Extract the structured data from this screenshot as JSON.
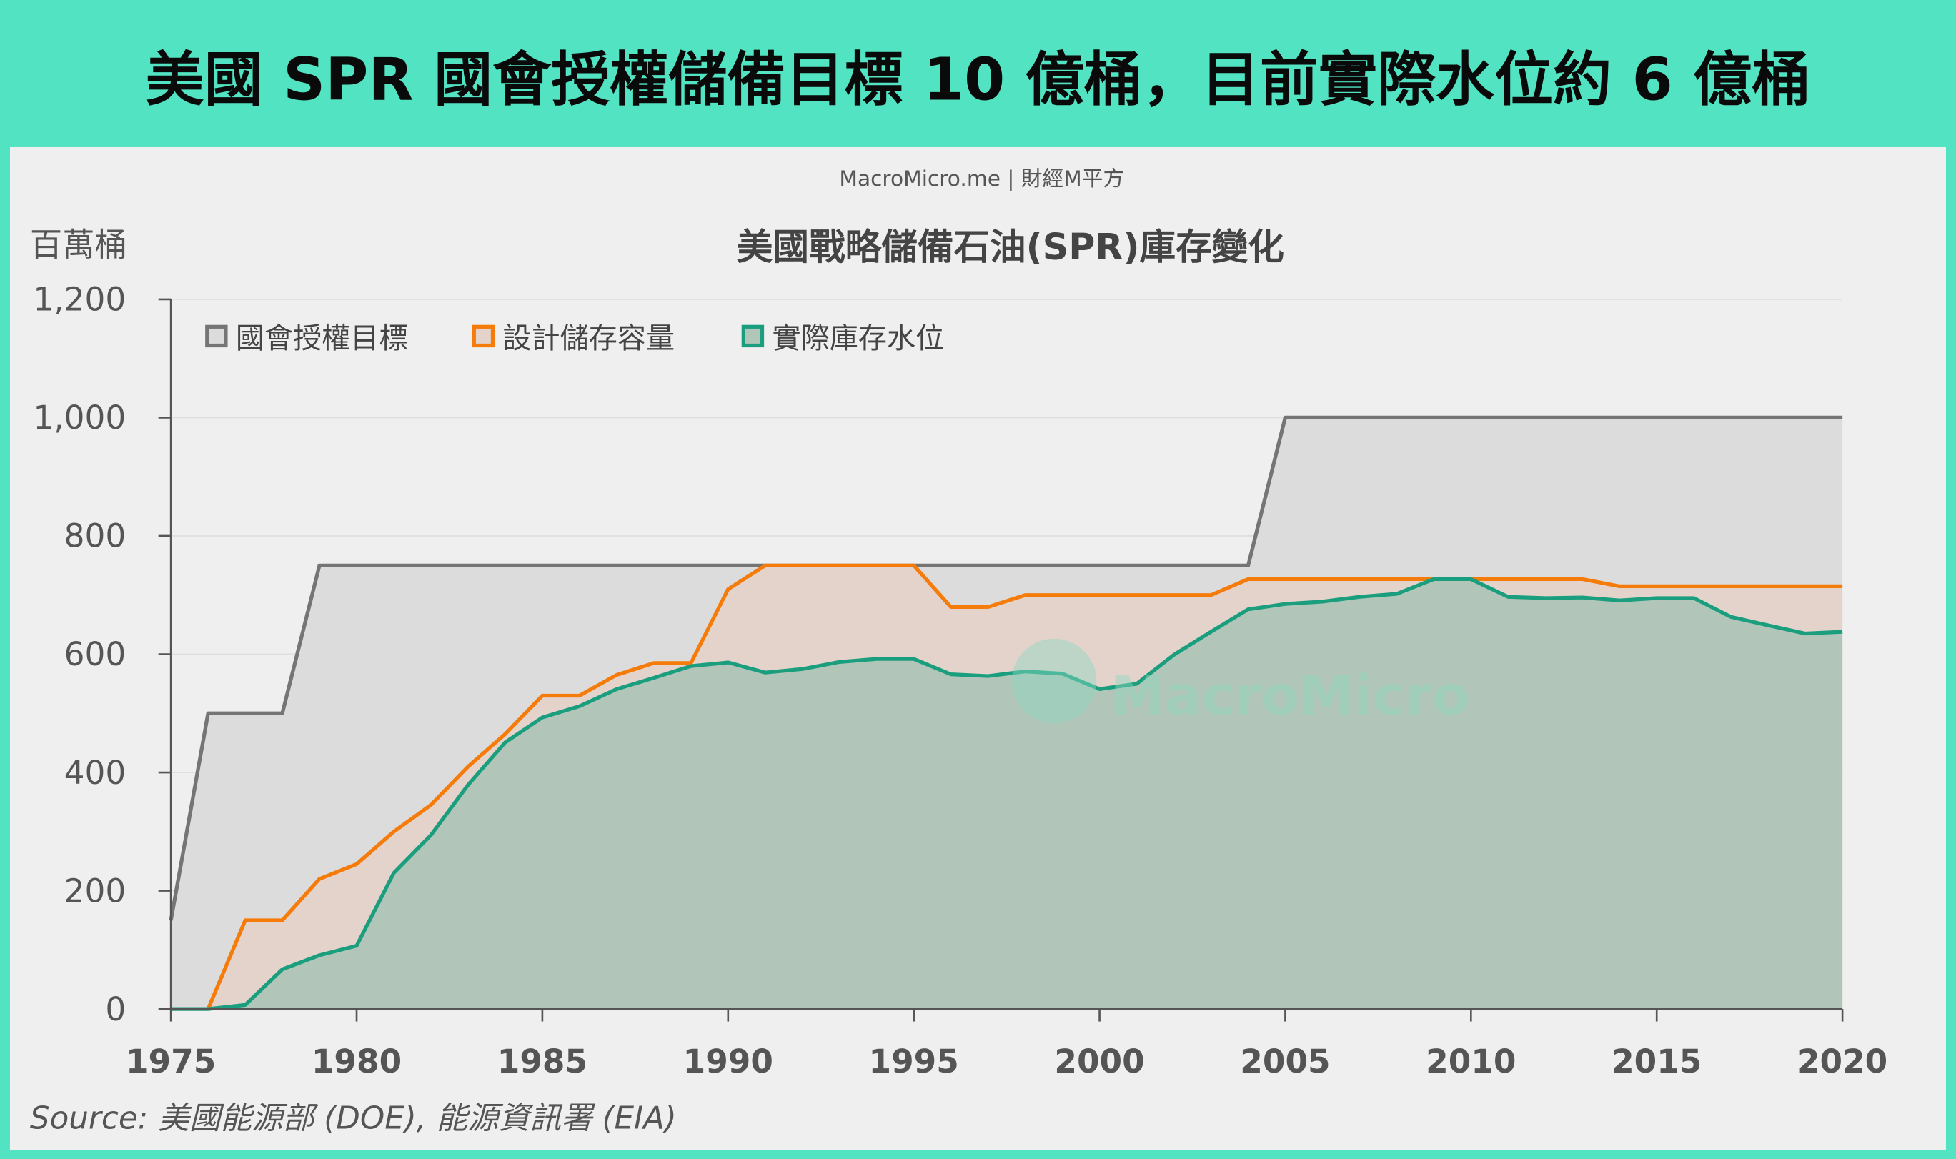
{
  "headline": "美國 SPR 國會授權儲備目標 10 億桶，目前實際水位約 6 億桶",
  "chart_data": {
    "type": "area",
    "watermark_credit": "MacroMicro.me | 財經M平方",
    "watermark_logo": "MacroMicro 財經M平方",
    "title": "美國戰略儲備石油(SPR)庫存變化",
    "ylabel": "百萬桶",
    "xlabel": "",
    "source": "Source: 美國能源部 (DOE), 能源資訊署 (EIA)",
    "xlim": [
      1975,
      2020
    ],
    "ylim": [
      0,
      1200
    ],
    "yticks": [
      "0",
      "200",
      "400",
      "600",
      "800",
      "1,000",
      "1,200"
    ],
    "ytick_values": [
      0,
      200,
      400,
      600,
      800,
      1000,
      1200
    ],
    "xticks": [
      "1975",
      "1980",
      "1985",
      "1990",
      "1995",
      "2000",
      "2005",
      "2010",
      "2015",
      "2020"
    ],
    "xtick_values": [
      1975,
      1980,
      1985,
      1990,
      1995,
      2000,
      2005,
      2010,
      2015,
      2020
    ],
    "grid": true,
    "legend_position": "top-left",
    "x": [
      1975,
      1976,
      1977,
      1978,
      1979,
      1980,
      1981,
      1982,
      1983,
      1984,
      1985,
      1986,
      1987,
      1988,
      1989,
      1990,
      1991,
      1992,
      1993,
      1994,
      1995,
      1996,
      1997,
      1998,
      1999,
      2000,
      2001,
      2002,
      2003,
      2004,
      2005,
      2006,
      2007,
      2008,
      2009,
      2010,
      2011,
      2012,
      2013,
      2014,
      2015,
      2016,
      2017,
      2018,
      2019,
      2020
    ],
    "series": [
      {
        "name": "國會授權目標",
        "color": "#777474",
        "fill": "#dcdcdc",
        "values": [
          150,
          500,
          500,
          500,
          750,
          750,
          750,
          750,
          750,
          750,
          750,
          750,
          750,
          750,
          750,
          750,
          750,
          750,
          750,
          750,
          750,
          750,
          750,
          750,
          750,
          750,
          750,
          750,
          750,
          750,
          1000,
          1000,
          1000,
          1000,
          1000,
          1000,
          1000,
          1000,
          1000,
          1000,
          1000,
          1000,
          1000,
          1000,
          1000,
          1000
        ]
      },
      {
        "name": "設計儲存容量",
        "color": "#f57b0a",
        "fill": "#e3d3cb",
        "values": [
          null,
          0,
          150,
          150,
          220,
          245,
          300,
          345,
          410,
          465,
          530,
          530,
          565,
          585,
          585,
          710,
          750,
          750,
          750,
          750,
          750,
          680,
          680,
          700,
          700,
          700,
          700,
          700,
          700,
          727,
          727,
          727,
          727,
          727,
          727,
          727,
          727,
          727,
          727,
          715,
          715,
          715,
          715,
          715,
          715,
          715
        ]
      },
      {
        "name": "實際庫存水位",
        "color": "#1b9e7e",
        "fill": "#b1c6b8",
        "values": [
          0,
          0,
          7,
          67,
          91,
          107,
          230,
          294,
          379,
          451,
          493,
          512,
          541,
          560,
          580,
          586,
          569,
          575,
          587,
          592,
          592,
          566,
          563,
          571,
          567,
          541,
          550,
          599,
          638,
          676,
          685,
          689,
          697,
          702,
          727,
          727,
          697,
          695,
          696,
          691,
          695,
          695,
          663,
          649,
          635,
          638
        ]
      }
    ]
  }
}
